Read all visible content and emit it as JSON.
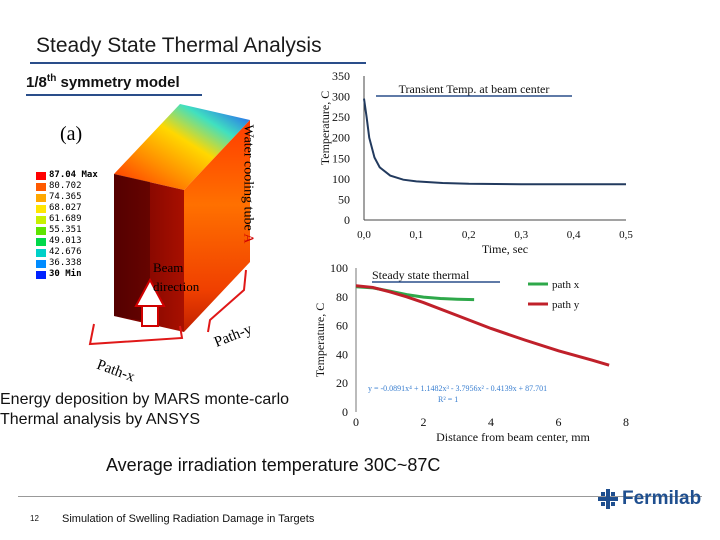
{
  "slide": {
    "title": "Steady State Thermal Analysis",
    "model_label": "1/8",
    "model_label_sup": "th",
    "model_label_rest": " symmetry model",
    "panel_label": "(a)",
    "legend": [
      {
        "label": "87.04 Max",
        "color": "#ff0000"
      },
      {
        "label": "80.702",
        "color": "#ff5a00"
      },
      {
        "label": "74.365",
        "color": "#ffa800"
      },
      {
        "label": "68.027",
        "color": "#ffe600"
      },
      {
        "label": "61.689",
        "color": "#c8f000"
      },
      {
        "label": "55.351",
        "color": "#5ee400"
      },
      {
        "label": "49.013",
        "color": "#00d84a"
      },
      {
        "label": "42.676",
        "color": "#00d0c8"
      },
      {
        "label": "36.338",
        "color": "#008cff"
      },
      {
        "label": "30 Min",
        "color": "#0022ff"
      }
    ],
    "water_tube_label": "Water cooling tube",
    "water_tube_suffix": "A",
    "beam_label_line1": "Beam",
    "beam_label_line2": "direction",
    "path_x_label": "Path-x",
    "path_y_label": "Path-y",
    "bottom_line1": "Energy deposition by MARS monte-carlo",
    "bottom_line2": "Thermal analysis by ANSYS",
    "summary": "Average irradiation temperature 30C~87C",
    "page_number": "12",
    "footer": "Simulation of Swelling Radiation Damage in Targets",
    "logo_text": "Fermilab",
    "colors": {
      "title_rule": "#2a4e8a",
      "transient_curve": "#223a5e",
      "path_x": "#2ea84a",
      "path_y": "#c0202a",
      "logo": "#1f4f8f"
    }
  },
  "chart_data": [
    {
      "type": "line",
      "title": "Transient Temp. at beam center",
      "xlabel": "Time, sec",
      "ylabel": "Temperature, C",
      "xlim": [
        0,
        0.5
      ],
      "ylim": [
        0,
        350
      ],
      "xticks": [
        "0,0",
        "0,1",
        "0,2",
        "0,3",
        "0,4",
        "0,5"
      ],
      "yticks": [
        "0",
        "50",
        "100",
        "150",
        "200",
        "250",
        "300",
        "350"
      ],
      "series": [
        {
          "x": [
            0.0,
            0.005,
            0.01,
            0.02,
            0.03,
            0.05,
            0.075,
            0.1,
            0.15,
            0.2,
            0.3,
            0.4,
            0.5
          ],
          "y": [
            295,
            250,
            200,
            152,
            128,
            108,
            98,
            94,
            90,
            88,
            87,
            87,
            87
          ]
        }
      ]
    },
    {
      "type": "line",
      "title": "Steady state thermal",
      "xlabel": "Distance from beam center, mm",
      "ylabel": "Temperature, C",
      "xlim": [
        0,
        8
      ],
      "ylim": [
        0,
        100
      ],
      "xticks": [
        "0",
        "2",
        "4",
        "6",
        "8"
      ],
      "yticks": [
        "0",
        "20",
        "40",
        "60",
        "80",
        "100"
      ],
      "trendline": "y = -0.0891x⁴ + 1.1482x³ - 3.7956x² - 0.4139x + 87.701",
      "r_squared": "R² = 1",
      "series": [
        {
          "name": "path x",
          "x": [
            0,
            0.5,
            1,
            1.5,
            2,
            2.5,
            3,
            3.5
          ],
          "y": [
            87.0,
            86.2,
            84.0,
            81.5,
            79.8,
            78.8,
            78.3,
            78.0
          ]
        },
        {
          "name": "path y",
          "x": [
            0,
            0.5,
            1,
            1.5,
            2,
            3,
            4,
            5,
            6,
            7,
            7.5
          ],
          "y": [
            87.7,
            86.5,
            83.5,
            80.0,
            76.0,
            67.0,
            58.0,
            50.0,
            42.5,
            36.0,
            32.5
          ]
        }
      ]
    }
  ]
}
